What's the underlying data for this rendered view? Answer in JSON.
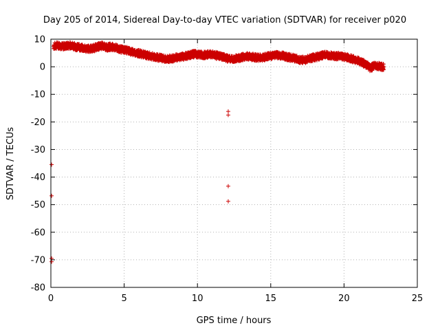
{
  "chart_data": {
    "type": "scatter",
    "title": "Day 205 of 2014, Sidereal Day-to-day VTEC variation (SDTVAR) for receiver p020",
    "xlabel": "GPS time / hours",
    "ylabel": "SDTVAR / TECUs",
    "xlim": [
      0,
      25
    ],
    "ylim": [
      -80,
      10
    ],
    "xticks": [
      0,
      5,
      10,
      15,
      20,
      25
    ],
    "yticks": [
      10,
      0,
      -10,
      -20,
      -30,
      -40,
      -50,
      -60,
      -70,
      -80
    ],
    "grid": true,
    "marker": "+",
    "marker_color": "#cc0000",
    "series": [
      {
        "name": "SDTVAR",
        "band": [
          [
            0.2,
            7.5
          ],
          [
            0.5,
            7.8
          ],
          [
            0.8,
            7.4
          ],
          [
            1.1,
            7.6
          ],
          [
            1.4,
            7.9
          ],
          [
            1.7,
            7.2
          ],
          [
            2.0,
            7.0
          ],
          [
            2.3,
            6.6
          ],
          [
            2.6,
            6.5
          ],
          [
            2.9,
            6.7
          ],
          [
            3.2,
            7.3
          ],
          [
            3.5,
            7.6
          ],
          [
            3.8,
            7.0
          ],
          [
            4.1,
            7.3
          ],
          [
            4.4,
            6.9
          ],
          [
            4.7,
            6.3
          ],
          [
            5.0,
            6.2
          ],
          [
            5.3,
            5.8
          ],
          [
            5.6,
            5.3
          ],
          [
            5.9,
            5.0
          ],
          [
            6.2,
            4.6
          ],
          [
            6.5,
            4.2
          ],
          [
            6.8,
            3.9
          ],
          [
            7.1,
            3.5
          ],
          [
            7.4,
            3.3
          ],
          [
            7.7,
            3.0
          ],
          [
            8.0,
            2.8
          ],
          [
            8.3,
            3.1
          ],
          [
            8.6,
            3.4
          ],
          [
            8.9,
            3.6
          ],
          [
            9.2,
            3.9
          ],
          [
            9.5,
            4.3
          ],
          [
            9.8,
            4.6
          ],
          [
            10.1,
            4.5
          ],
          [
            10.4,
            4.2
          ],
          [
            10.7,
            4.4
          ],
          [
            11.0,
            4.6
          ],
          [
            11.3,
            4.1
          ],
          [
            11.6,
            3.7
          ],
          [
            11.9,
            3.2
          ],
          [
            12.2,
            2.9
          ],
          [
            12.5,
            3.0
          ],
          [
            12.8,
            3.2
          ],
          [
            13.1,
            3.5
          ],
          [
            13.4,
            3.8
          ],
          [
            13.7,
            3.6
          ],
          [
            14.0,
            3.4
          ],
          [
            14.3,
            3.3
          ],
          [
            14.6,
            3.5
          ],
          [
            14.9,
            3.9
          ],
          [
            15.2,
            4.1
          ],
          [
            15.5,
            4.2
          ],
          [
            15.8,
            4.0
          ],
          [
            16.1,
            3.6
          ],
          [
            16.4,
            3.3
          ],
          [
            16.7,
            3.0
          ],
          [
            17.0,
            2.5
          ],
          [
            17.3,
            2.4
          ],
          [
            17.6,
            2.9
          ],
          [
            17.9,
            3.3
          ],
          [
            18.2,
            3.6
          ],
          [
            18.5,
            4.1
          ],
          [
            18.8,
            4.3
          ],
          [
            19.1,
            4.0
          ],
          [
            19.4,
            3.8
          ],
          [
            19.7,
            3.9
          ],
          [
            20.0,
            3.6
          ],
          [
            20.3,
            3.3
          ],
          [
            20.6,
            2.8
          ],
          [
            20.9,
            2.3
          ],
          [
            21.2,
            1.7
          ],
          [
            21.5,
            0.8
          ],
          [
            21.8,
            -0.5
          ],
          [
            22.1,
            0.5
          ],
          [
            22.4,
            0.2
          ],
          [
            22.7,
            -0.2
          ]
        ],
        "outliers": [
          [
            0.05,
            -35.5
          ],
          [
            0.05,
            -46.8
          ],
          [
            0.05,
            -69.5
          ],
          [
            0.05,
            -70.7
          ],
          [
            12.1,
            -16.2
          ],
          [
            12.1,
            -17.5
          ],
          [
            12.1,
            -43.3
          ],
          [
            12.1,
            -48.8
          ]
        ]
      }
    ]
  }
}
